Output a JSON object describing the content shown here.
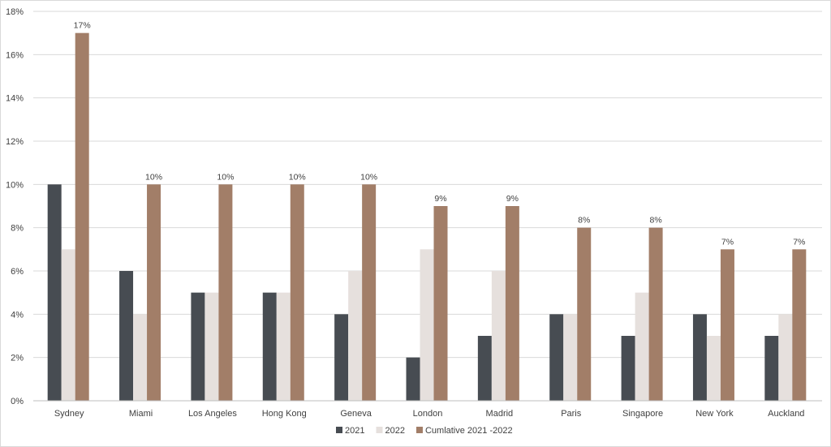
{
  "chart_data": {
    "type": "bar",
    "title": "",
    "xlabel": "",
    "ylabel": "",
    "categories": [
      "Sydney",
      "Miami",
      "Los Angeles",
      "Hong Kong",
      "Geneva",
      "London",
      "Madrid",
      "Paris",
      "Singapore",
      "New York",
      "Auckland"
    ],
    "series": [
      {
        "name": "2021",
        "color": "#474c52",
        "values": [
          10,
          6,
          5,
          5,
          4,
          2,
          3,
          4,
          3,
          4,
          3
        ]
      },
      {
        "name": "2022",
        "color": "#e6e0dd",
        "values": [
          7,
          4,
          5,
          5,
          6,
          7,
          6,
          4,
          5,
          3,
          4
        ]
      },
      {
        "name": "Cumlative 2021 -2022",
        "color": "#a27e68",
        "values": [
          17,
          10,
          10,
          10,
          10,
          9,
          9,
          8,
          8,
          7,
          7
        ]
      }
    ],
    "data_labels": {
      "series": "Cumlative 2021 -2022",
      "labels": [
        "17%",
        "10%",
        "10%",
        "10%",
        "10%",
        "9%",
        "9%",
        "8%",
        "8%",
        "7%",
        "7%"
      ]
    },
    "yticks": [
      0,
      2,
      4,
      6,
      8,
      10,
      12,
      14,
      16,
      18
    ],
    "ytick_labels": [
      "0%",
      "2%",
      "4%",
      "6%",
      "8%",
      "10%",
      "12%",
      "14%",
      "16%",
      "18%"
    ],
    "ylim": [
      0,
      18
    ],
    "grid": true,
    "legend_position": "bottom"
  }
}
